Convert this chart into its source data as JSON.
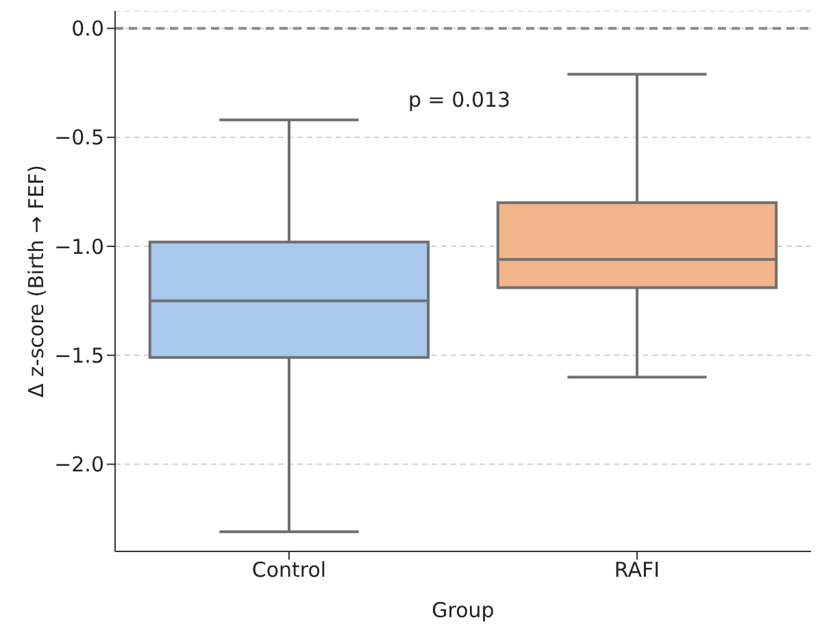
{
  "chart_data": {
    "type": "box",
    "xlabel": "Group",
    "ylabel": "Δ z-score (Birth → FEF)",
    "categories": [
      "Control",
      "RAFI"
    ],
    "colors": [
      "#a8c8ec",
      "#f2b48a"
    ],
    "boxes": [
      {
        "low": -2.31,
        "q1": -1.51,
        "median": -1.25,
        "q3": -0.98,
        "high": -0.42
      },
      {
        "low": -1.6,
        "q1": -1.19,
        "median": -1.06,
        "q3": -0.8,
        "high": -0.21
      }
    ],
    "ylim": [
      -2.4,
      0.08
    ],
    "yticks": [
      {
        "value": -2,
        "label": "−2.0"
      },
      {
        "value": -1.5,
        "label": "−1.5"
      },
      {
        "value": -1,
        "label": "−1.0"
      },
      {
        "value": -0.5,
        "label": "−0.5"
      },
      {
        "value": 0,
        "label": "0.0"
      }
    ],
    "grid": "y",
    "ref_lines": [
      {
        "axis": "y",
        "value": 0,
        "color": "#8a8a8a",
        "line_style": "dashed"
      }
    ],
    "annotations": [
      "p = 0.013"
    ]
  }
}
